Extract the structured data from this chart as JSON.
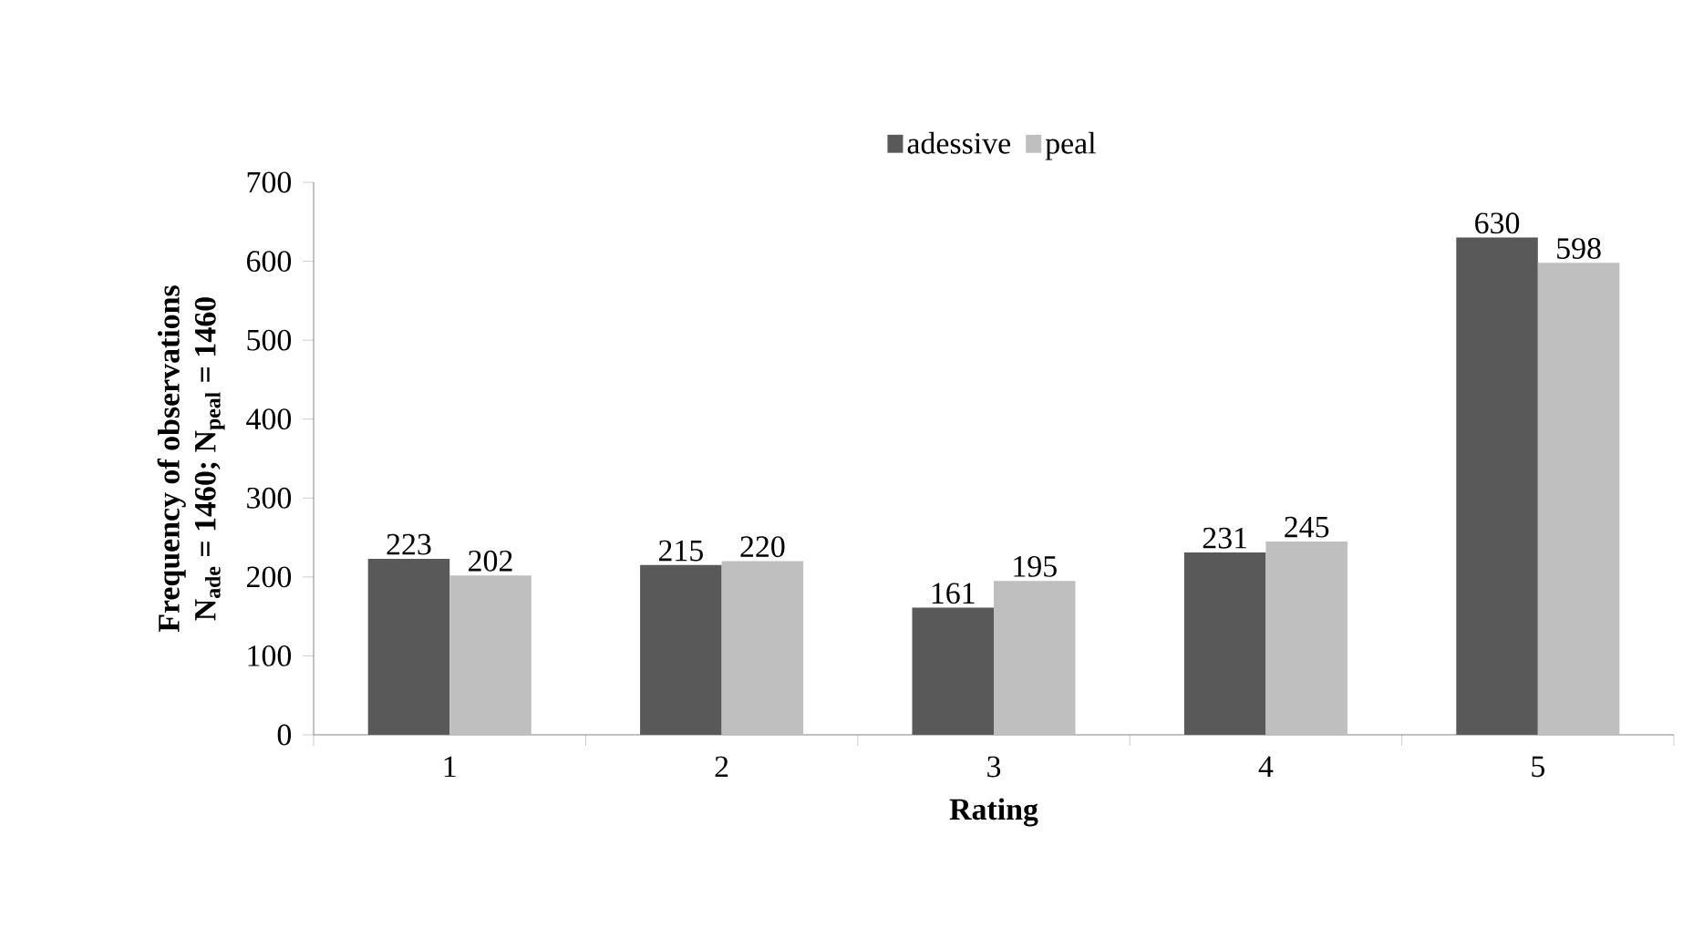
{
  "chart_data": {
    "type": "bar",
    "xlabel": "Rating",
    "ylabel": [
      "Frequency of observations",
      "N$_{ade}$ = 1460; N$_{peal}$ = 1460"
    ],
    "categories": [
      "1",
      "2",
      "3",
      "4",
      "5"
    ],
    "series": [
      {
        "name": "adessive",
        "color": "#595959",
        "values": [
          223,
          215,
          161,
          231,
          630
        ]
      },
      {
        "name": "peal",
        "color": "#bfbfbf",
        "values": [
          202,
          220,
          195,
          245,
          598
        ]
      }
    ],
    "ylim": [
      0,
      700
    ],
    "yticks": [
      0,
      100,
      200,
      300,
      400,
      500,
      600,
      700
    ],
    "data_labels": true,
    "legend": "top",
    "grid": false
  }
}
